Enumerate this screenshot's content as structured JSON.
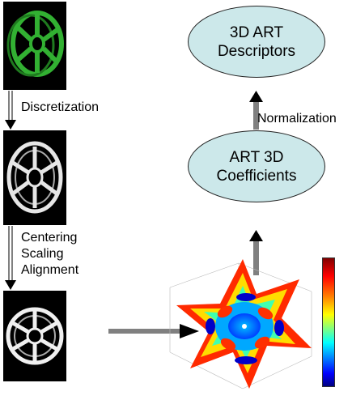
{
  "steps": {
    "discretization": "Discretization",
    "centering": "Centering",
    "scaling": "Scaling",
    "alignment": "Alignment"
  },
  "nodes": {
    "descriptors": [
      "3D ART",
      "Descriptors"
    ],
    "coefficients": [
      "ART 3D",
      "Coefficients"
    ]
  },
  "edge_labels": {
    "normalization": "Normalization"
  },
  "colors": {
    "node_fill": "#cce8ea",
    "arrow": "#808080",
    "wheel_green": "#2fa02f"
  }
}
